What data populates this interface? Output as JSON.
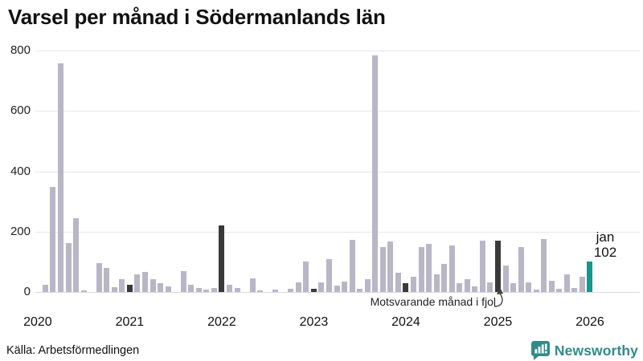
{
  "title": "Varsel per månad i Södermanlands län",
  "annotation": {
    "text": "Motsvarande månad i fjol"
  },
  "current_label": {
    "month": "jan",
    "value": "102"
  },
  "footer": {
    "source": "Källa: Arbetsförmedlingen",
    "brand": "Newsworthy"
  },
  "colors": {
    "bar_default": "#b9b6c7",
    "bar_previous_january": "#3a3a3a",
    "bar_current": "#12998c",
    "brand": "#2f8c88",
    "grid": "#e7e7ec",
    "axis_line": "#d9d9df",
    "text": "#111111"
  },
  "chart_data": {
    "type": "bar",
    "title": "Varsel per månad i Södermanlands län",
    "source": "Källa: Arbetsförmedlingen",
    "ylim": [
      0,
      800
    ],
    "yticks": [
      0,
      200,
      400,
      600,
      800
    ],
    "grid": true,
    "x_unit": "month",
    "x_year_labels": [
      "2020",
      "2021",
      "2022",
      "2023",
      "2024",
      "2025",
      "2026"
    ],
    "years": [
      {
        "label": "2020",
        "jan_style": "none",
        "values": [
          null,
          25,
          347,
          757,
          161,
          244,
          6,
          0,
          95,
          80,
          15,
          42
        ]
      },
      {
        "label": "2021",
        "jan_style": "dark",
        "values": [
          24,
          58,
          67,
          43,
          29,
          18,
          0,
          69,
          24,
          13,
          8,
          13
        ]
      },
      {
        "label": "2022",
        "jan_style": "dark",
        "values": [
          220,
          24,
          12,
          0,
          46,
          5,
          0,
          7,
          0,
          11,
          31,
          100
        ]
      },
      {
        "label": "2023",
        "jan_style": "dark",
        "values": [
          10,
          33,
          108,
          21,
          35,
          172,
          10,
          43,
          785,
          148,
          167,
          64
        ]
      },
      {
        "label": "2024",
        "jan_style": "dark",
        "values": [
          28,
          50,
          150,
          160,
          59,
          93,
          155,
          30,
          42,
          19,
          170,
          33
        ]
      },
      {
        "label": "2025",
        "jan_style": "dark",
        "values": [
          170,
          88,
          28,
          148,
          33,
          8,
          176,
          37,
          11,
          58,
          13,
          50
        ]
      },
      {
        "label": "2026",
        "jan_style": "current",
        "values": [
          102
        ]
      }
    ],
    "highlight_annotation": "Motsvarande månad i fjol",
    "current_point": {
      "year": "2026",
      "month": "jan",
      "value": 102
    }
  }
}
